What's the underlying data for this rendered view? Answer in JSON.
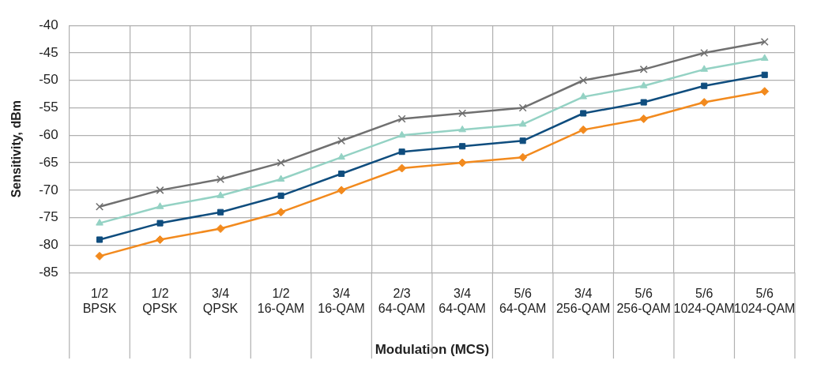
{
  "chart_data": {
    "type": "line",
    "xlabel": "Modulation (MCS)",
    "ylabel": "Sensitivity, dBm",
    "categories": [
      "1/2\nBPSK",
      "1/2\nQPSK",
      "3/4\nQPSK",
      "1/2\n16-QAM",
      "3/4\n16-QAM",
      "2/3\n64-QAM",
      "3/4\n64-QAM",
      "5/6\n64-QAM",
      "3/4\n256-QAM",
      "5/6\n256-QAM",
      "5/6\n1024-QAM",
      "5/6\n1024-QAM"
    ],
    "series": [
      {
        "color": "#707070",
        "marker": "cross",
        "values": [
          -73,
          -70,
          -68,
          -65,
          -61,
          -57,
          -56,
          -55,
          -50,
          -48,
          -45,
          -43
        ]
      },
      {
        "color": "#94d2c4",
        "marker": "triangle",
        "values": [
          -76,
          -73,
          -71,
          -68,
          -64,
          -60,
          -59,
          -58,
          -53,
          -51,
          -48,
          -46
        ]
      },
      {
        "color": "#0f4d7e",
        "marker": "square",
        "values": [
          -79,
          -76,
          -74,
          -71,
          -67,
          -63,
          -62,
          -61,
          -56,
          -54,
          -51,
          -49
        ]
      },
      {
        "color": "#f28a1e",
        "marker": "diamond",
        "values": [
          -82,
          -79,
          -77,
          -74,
          -70,
          -66,
          -65,
          -64,
          -59,
          -57,
          -54,
          -52
        ]
      }
    ],
    "ylim": [
      -85,
      -40
    ],
    "yticks": [
      -85,
      -80,
      -75,
      -70,
      -65,
      -60,
      -55,
      -50,
      -45,
      -40
    ],
    "grid": true,
    "legend": false
  }
}
